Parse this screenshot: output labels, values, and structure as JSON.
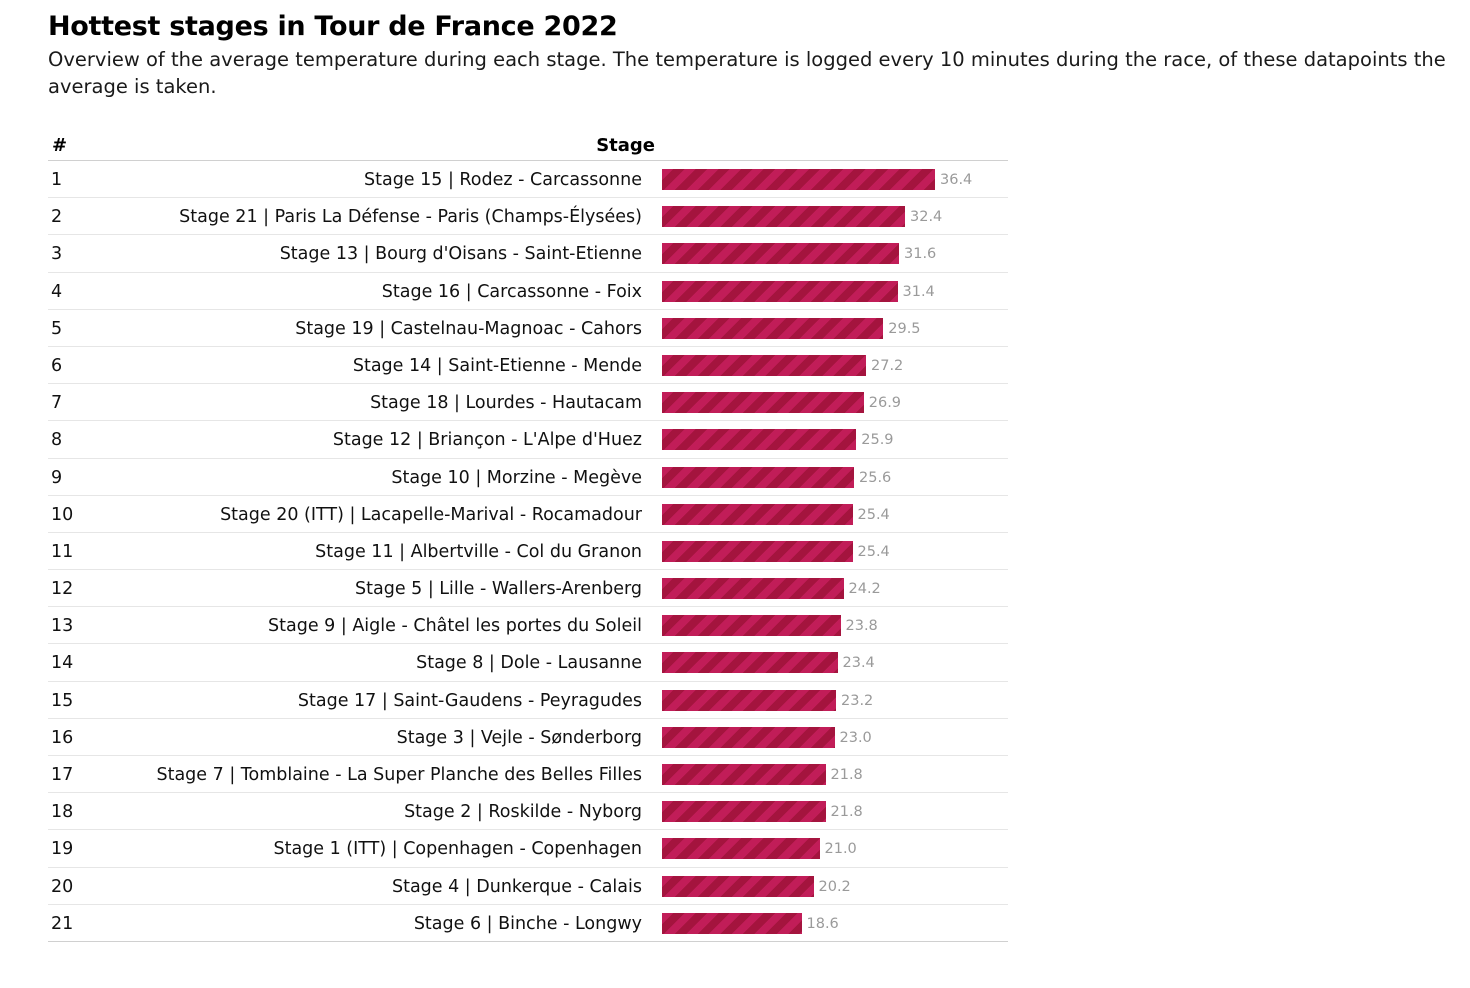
{
  "title": "Hottest stages in Tour de France 2022",
  "subtitle": "Overview of the average temperature during each stage. The temperature is logged every 10 minutes during the race, of these datapoints the average is taken.",
  "bar_color": "#c11d58",
  "bar_stripe_color": "#a4143e",
  "chart_data": {
    "type": "bar",
    "orientation": "horizontal",
    "columns": {
      "rank": "#",
      "stage": "Stage"
    },
    "ylim": [
      0,
      45
    ],
    "categories": [
      "Stage 15 | Rodez - Carcassonne",
      "Stage 21 | Paris La Défense - Paris (Champs-Élysées)",
      "Stage 13 | Bourg d'Oisans - Saint-Etienne",
      "Stage 16 | Carcassonne - Foix",
      "Stage 19 | Castelnau-Magnoac - Cahors",
      "Stage 14 | Saint-Etienne - Mende",
      "Stage 18 | Lourdes - Hautacam",
      "Stage 12 | Briançon - L'Alpe d'Huez",
      "Stage 10 | Morzine - Megève",
      "Stage 20 (ITT) | Lacapelle-Marival - Rocamadour",
      "Stage 11 | Albertville - Col du Granon",
      "Stage 5 | Lille - Wallers-Arenberg",
      "Stage 9 | Aigle - Châtel les portes du Soleil",
      "Stage 8 | Dole - Lausanne",
      "Stage 17 | Saint-Gaudens - Peyragudes",
      "Stage 3 | Vejle - Sønderborg",
      "Stage 7 | Tomblaine - La Super Planche des Belles Filles",
      "Stage 2 | Roskilde - Nyborg",
      "Stage 1 (ITT) | Copenhagen - Copenhagen",
      "Stage 4 | Dunkerque - Calais",
      "Stage 6 | Binche - Longwy"
    ],
    "ranks": [
      "1",
      "2",
      "3",
      "4",
      "5",
      "6",
      "7",
      "8",
      "9",
      "10",
      "11",
      "12",
      "13",
      "14",
      "15",
      "16",
      "17",
      "18",
      "19",
      "20",
      "21"
    ],
    "values": [
      36.4,
      32.4,
      31.6,
      31.4,
      29.5,
      27.2,
      26.9,
      25.9,
      25.6,
      25.4,
      25.4,
      24.2,
      23.8,
      23.4,
      23.2,
      23.0,
      21.8,
      21.8,
      21.0,
      20.2,
      18.6
    ],
    "labels": [
      "36.4",
      "32.4",
      "31.6",
      "31.4",
      "29.5",
      "27.2",
      "26.9",
      "25.9",
      "25.6",
      "25.4",
      "25.4",
      "24.2",
      "23.8",
      "23.4",
      "23.2",
      "23.0",
      "21.8",
      "21.8",
      "21.0",
      "20.2",
      "18.6"
    ]
  }
}
